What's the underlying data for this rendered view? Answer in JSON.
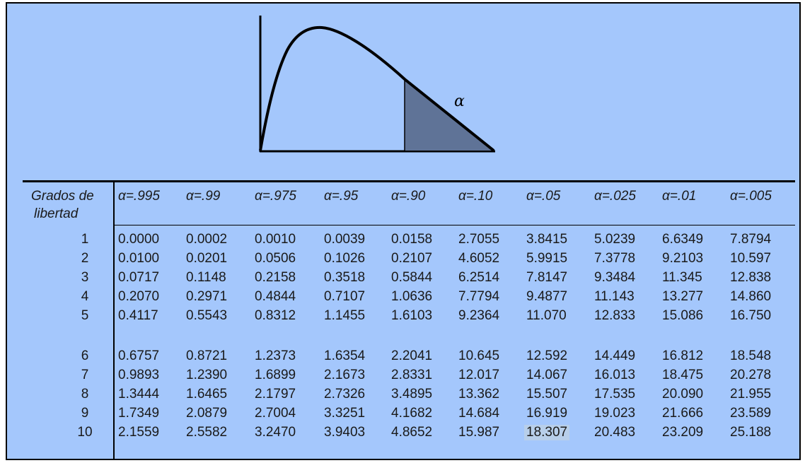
{
  "figure": {
    "alpha_symbol": "α"
  },
  "table": {
    "row_header": [
      "Grados de",
      "libertad"
    ],
    "columns": [
      "α=.995",
      "α=.99",
      "α=.975",
      "α=.95",
      "α=.90",
      "α=.10",
      "α=.05",
      "α=.025",
      "α=.01",
      "α=.005"
    ],
    "rows": [
      {
        "df": "1",
        "values": [
          "0.0000",
          "0.0002",
          "0.0010",
          "0.0039",
          "0.0158",
          "2.7055",
          "3.8415",
          "5.0239",
          "6.6349",
          "7.8794"
        ]
      },
      {
        "df": "2",
        "values": [
          "0.0100",
          "0.0201",
          "0.0506",
          "0.1026",
          "0.2107",
          "4.6052",
          "5.9915",
          "7.3778",
          "9.2103",
          "10.597"
        ]
      },
      {
        "df": "3",
        "values": [
          "0.0717",
          "0.1148",
          "0.2158",
          "0.3518",
          "0.5844",
          "6.2514",
          "7.8147",
          "9.3484",
          "11.345",
          "12.838"
        ]
      },
      {
        "df": "4",
        "values": [
          "0.2070",
          "0.2971",
          "0.4844",
          "0.7107",
          "1.0636",
          "7.7794",
          "9.4877",
          "11.143",
          "13.277",
          "14.860"
        ]
      },
      {
        "df": "5",
        "values": [
          "0.4117",
          "0.5543",
          "0.8312",
          "1.1455",
          "1.6103",
          "9.2364",
          "11.070",
          "12.833",
          "15.086",
          "16.750"
        ]
      },
      {
        "df": "6",
        "values": [
          "0.6757",
          "0.8721",
          "1.2373",
          "1.6354",
          "2.2041",
          "10.645",
          "12.592",
          "14.449",
          "16.812",
          "18.548"
        ]
      },
      {
        "df": "7",
        "values": [
          "0.9893",
          "1.2390",
          "1.6899",
          "2.1673",
          "2.8331",
          "12.017",
          "14.067",
          "16.013",
          "18.475",
          "20.278"
        ]
      },
      {
        "df": "8",
        "values": [
          "1.3444",
          "1.6465",
          "2.1797",
          "2.7326",
          "3.4895",
          "13.362",
          "15.507",
          "17.535",
          "20.090",
          "21.955"
        ]
      },
      {
        "df": "9",
        "values": [
          "1.7349",
          "2.0879",
          "2.7004",
          "3.3251",
          "4.1682",
          "14.684",
          "16.919",
          "19.023",
          "21.666",
          "23.589"
        ]
      },
      {
        "df": "10",
        "values": [
          "2.1559",
          "2.5582",
          "3.2470",
          "3.9403",
          "4.8652",
          "15.987",
          "18.307",
          "20.483",
          "23.209",
          "25.188"
        ]
      }
    ],
    "highlighted_cell": {
      "row": 9,
      "col": 6
    }
  },
  "colors": {
    "background": "#a4c7fc",
    "shaded_area": "#5f7397",
    "highlight": "#b8cfea"
  }
}
